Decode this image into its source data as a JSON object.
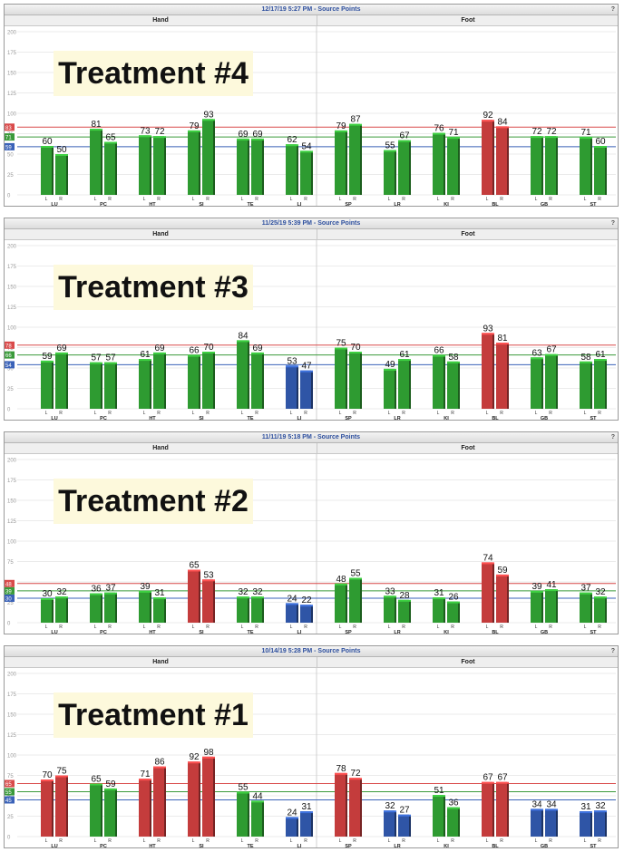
{
  "colors": {
    "green": "#2e9b31",
    "red": "#c43c3c",
    "blue": "#2f55a6",
    "line_red": "#d94a4a",
    "line_green": "#3a9a3a",
    "line_blue": "#3a62b8"
  },
  "chart_data": [
    {
      "type": "bar",
      "title": "12/17/19 5:27 PM - Source Points",
      "annotation": "Treatment #4",
      "ylim": [
        0,
        200
      ],
      "yticks": [
        "200",
        "175",
        "150",
        "125",
        "100",
        "75",
        "50",
        "25",
        "0"
      ],
      "groups": [
        "Hand",
        "Foot"
      ],
      "categories": [
        "LU",
        "PC",
        "HT",
        "SI",
        "TE",
        "LI",
        "SP",
        "LR",
        "KI",
        "BL",
        "GB",
        "ST"
      ],
      "sides": [
        "L",
        "R"
      ],
      "values": [
        [
          60,
          50
        ],
        [
          81,
          65
        ],
        [
          73,
          72
        ],
        [
          79,
          93
        ],
        [
          69,
          69
        ],
        [
          62,
          54
        ],
        [
          79,
          87
        ],
        [
          55,
          67
        ],
        [
          76,
          71
        ],
        [
          92,
          84
        ],
        [
          72,
          72
        ],
        [
          71,
          60
        ]
      ],
      "colors": [
        [
          "g",
          "g"
        ],
        [
          "g",
          "g"
        ],
        [
          "g",
          "g"
        ],
        [
          "g",
          "g"
        ],
        [
          "g",
          "g"
        ],
        [
          "g",
          "g"
        ],
        [
          "g",
          "g"
        ],
        [
          "g",
          "g"
        ],
        [
          "g",
          "g"
        ],
        [
          "r",
          "r"
        ],
        [
          "g",
          "g"
        ],
        [
          "g",
          "g"
        ]
      ],
      "reference_lines": [
        {
          "value": 83,
          "color": "r"
        },
        {
          "value": 71,
          "color": "g"
        },
        {
          "value": 59,
          "color": "b"
        }
      ]
    },
    {
      "type": "bar",
      "title": "11/25/19 5:39 PM - Source Points",
      "annotation": "Treatment #3",
      "ylim": [
        0,
        200
      ],
      "yticks": [
        "200",
        "175",
        "150",
        "125",
        "100",
        "75",
        "50",
        "25",
        "0"
      ],
      "groups": [
        "Hand",
        "Foot"
      ],
      "categories": [
        "LU",
        "PC",
        "HT",
        "SI",
        "TE",
        "LI",
        "SP",
        "LR",
        "KI",
        "BL",
        "GB",
        "ST"
      ],
      "sides": [
        "L",
        "R"
      ],
      "values": [
        [
          59,
          69
        ],
        [
          57,
          57
        ],
        [
          61,
          69
        ],
        [
          66,
          70
        ],
        [
          84,
          69
        ],
        [
          53,
          47
        ],
        [
          75,
          70
        ],
        [
          49,
          61
        ],
        [
          66,
          58
        ],
        [
          93,
          81
        ],
        [
          63,
          67
        ],
        [
          58,
          61
        ]
      ],
      "colors": [
        [
          "g",
          "g"
        ],
        [
          "g",
          "g"
        ],
        [
          "g",
          "g"
        ],
        [
          "g",
          "g"
        ],
        [
          "g",
          "g"
        ],
        [
          "b",
          "b"
        ],
        [
          "g",
          "g"
        ],
        [
          "g",
          "g"
        ],
        [
          "g",
          "g"
        ],
        [
          "r",
          "r"
        ],
        [
          "g",
          "g"
        ],
        [
          "g",
          "g"
        ]
      ],
      "reference_lines": [
        {
          "value": 78,
          "color": "r"
        },
        {
          "value": 66,
          "color": "g"
        },
        {
          "value": 54,
          "color": "b"
        }
      ]
    },
    {
      "type": "bar",
      "title": "11/11/19 5:18 PM - Source Points",
      "annotation": "Treatment #2",
      "ylim": [
        0,
        200
      ],
      "yticks": [
        "200",
        "175",
        "150",
        "125",
        "100",
        "75",
        "50",
        "25",
        "0"
      ],
      "groups": [
        "Hand",
        "Foot"
      ],
      "categories": [
        "LU",
        "PC",
        "HT",
        "SI",
        "TE",
        "LI",
        "SP",
        "LR",
        "KI",
        "BL",
        "GB",
        "ST"
      ],
      "sides": [
        "L",
        "R"
      ],
      "values": [
        [
          30,
          32
        ],
        [
          36,
          37
        ],
        [
          39,
          31
        ],
        [
          65,
          53
        ],
        [
          32,
          32
        ],
        [
          24,
          22
        ],
        [
          48,
          55
        ],
        [
          33,
          28
        ],
        [
          31,
          26
        ],
        [
          74,
          59
        ],
        [
          39,
          41
        ],
        [
          37,
          32
        ]
      ],
      "colors": [
        [
          "g",
          "g"
        ],
        [
          "g",
          "g"
        ],
        [
          "g",
          "g"
        ],
        [
          "r",
          "r"
        ],
        [
          "g",
          "g"
        ],
        [
          "b",
          "b"
        ],
        [
          "g",
          "g"
        ],
        [
          "g",
          "g"
        ],
        [
          "g",
          "g"
        ],
        [
          "r",
          "r"
        ],
        [
          "g",
          "g"
        ],
        [
          "g",
          "g"
        ]
      ],
      "reference_lines": [
        {
          "value": 48,
          "color": "r"
        },
        {
          "value": 39,
          "color": "g"
        },
        {
          "value": 30,
          "color": "b"
        }
      ]
    },
    {
      "type": "bar",
      "title": "10/14/19 5:28 PM - Source Points",
      "annotation": "Treatment #1",
      "ylim": [
        0,
        200
      ],
      "yticks": [
        "200",
        "175",
        "150",
        "125",
        "100",
        "75",
        "50",
        "25",
        "0"
      ],
      "groups": [
        "Hand",
        "Foot"
      ],
      "categories": [
        "LU",
        "PC",
        "HT",
        "SI",
        "TE",
        "LI",
        "SP",
        "LR",
        "KI",
        "BL",
        "GB",
        "ST"
      ],
      "sides": [
        "L",
        "R"
      ],
      "values": [
        [
          70,
          75
        ],
        [
          65,
          59
        ],
        [
          71,
          86
        ],
        [
          92,
          98
        ],
        [
          55,
          44
        ],
        [
          24,
          31
        ],
        [
          78,
          72
        ],
        [
          32,
          27
        ],
        [
          51,
          36
        ],
        [
          67,
          67
        ],
        [
          34,
          34
        ],
        [
          31,
          32
        ]
      ],
      "colors": [
        [
          "r",
          "r"
        ],
        [
          "g",
          "g"
        ],
        [
          "r",
          "r"
        ],
        [
          "r",
          "r"
        ],
        [
          "g",
          "g"
        ],
        [
          "b",
          "b"
        ],
        [
          "r",
          "r"
        ],
        [
          "b",
          "b"
        ],
        [
          "g",
          "g"
        ],
        [
          "r",
          "r"
        ],
        [
          "b",
          "b"
        ],
        [
          "b",
          "b"
        ]
      ],
      "reference_lines": [
        {
          "value": 65,
          "color": "r"
        },
        {
          "value": 55,
          "color": "g"
        },
        {
          "value": 45,
          "color": "b"
        }
      ]
    }
  ]
}
